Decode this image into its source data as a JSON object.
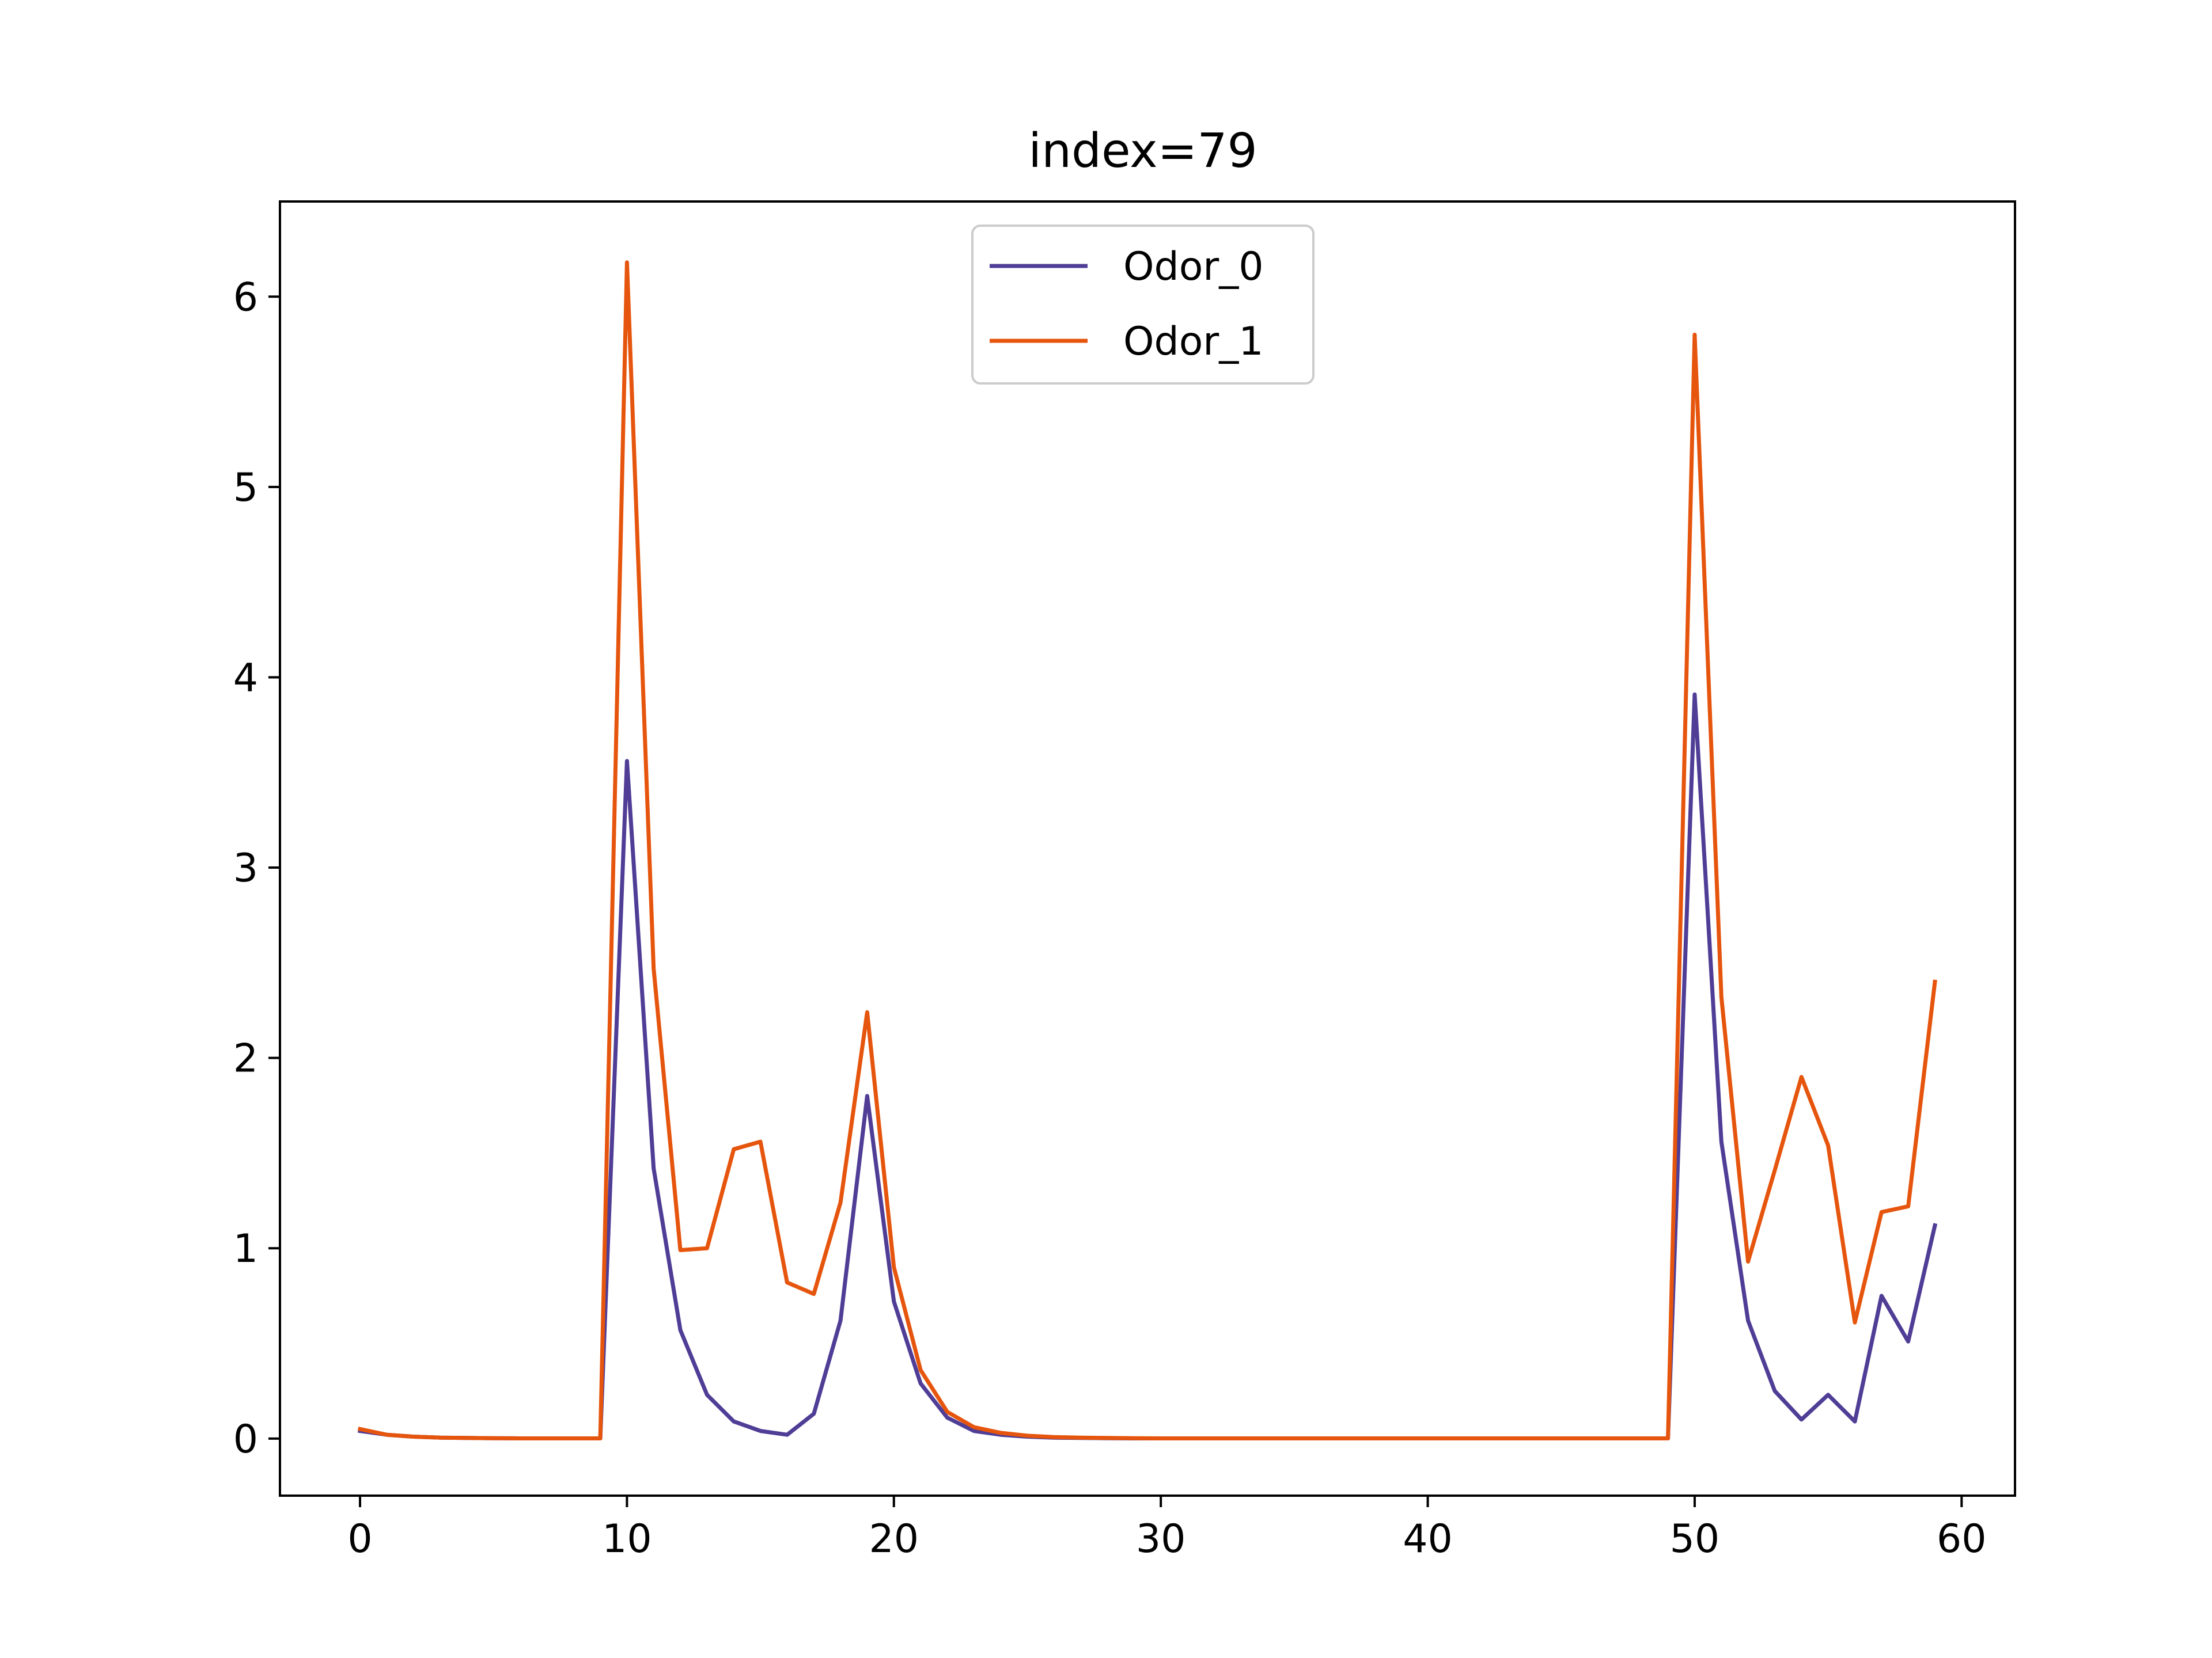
{
  "chart_data": {
    "type": "line",
    "title": "index=79",
    "xlabel": "",
    "ylabel": "",
    "xlim": [
      -3,
      62
    ],
    "ylim": [
      -0.3,
      6.5
    ],
    "xticks": [
      0,
      10,
      20,
      30,
      40,
      50,
      60
    ],
    "yticks": [
      0,
      1,
      2,
      3,
      4,
      5,
      6
    ],
    "grid": false,
    "legend": {
      "placement": "upper center"
    },
    "x": [
      0,
      1,
      2,
      3,
      4,
      5,
      6,
      7,
      8,
      9,
      10,
      11,
      12,
      13,
      14,
      15,
      16,
      17,
      18,
      19,
      20,
      21,
      22,
      23,
      24,
      25,
      26,
      27,
      28,
      29,
      30,
      31,
      32,
      33,
      34,
      35,
      36,
      37,
      38,
      39,
      40,
      41,
      42,
      43,
      44,
      45,
      46,
      47,
      48,
      49,
      50,
      51,
      52,
      53,
      54,
      55,
      56,
      57,
      58,
      59
    ],
    "series": [
      {
        "name": "Odor_0",
        "color": "#4f3d96",
        "values": [
          0.04,
          0.02,
          0.01,
          0.005,
          0.003,
          0.002,
          0.001,
          0.001,
          0.001,
          0.001,
          3.56,
          1.42,
          0.57,
          0.23,
          0.09,
          0.04,
          0.02,
          0.13,
          0.62,
          1.8,
          0.72,
          0.29,
          0.11,
          0.04,
          0.02,
          0.01,
          0.005,
          0.003,
          0.002,
          0.001,
          0.001,
          0.001,
          0.001,
          0.001,
          0.001,
          0.001,
          0.001,
          0.001,
          0.001,
          0.001,
          0.001,
          0.001,
          0.001,
          0.001,
          0.001,
          0.001,
          0.001,
          0.001,
          0.001,
          0.001,
          3.91,
          1.56,
          0.62,
          0.25,
          0.1,
          0.23,
          0.09,
          0.75,
          0.51,
          1.12
        ]
      },
      {
        "name": "Odor_1",
        "color": "#e6550d",
        "values": [
          0.05,
          0.02,
          0.01,
          0.005,
          0.003,
          0.002,
          0.001,
          0.001,
          0.001,
          0.001,
          6.18,
          2.47,
          0.99,
          1.0,
          1.52,
          1.56,
          0.82,
          0.76,
          1.24,
          2.24,
          0.9,
          0.36,
          0.14,
          0.06,
          0.03,
          0.015,
          0.008,
          0.005,
          0.003,
          0.002,
          0.001,
          0.001,
          0.001,
          0.001,
          0.001,
          0.001,
          0.001,
          0.001,
          0.001,
          0.001,
          0.001,
          0.001,
          0.001,
          0.001,
          0.001,
          0.001,
          0.001,
          0.001,
          0.001,
          0.001,
          5.8,
          2.32,
          0.93,
          1.41,
          1.9,
          1.54,
          0.61,
          1.19,
          1.22,
          2.4
        ]
      }
    ]
  }
}
